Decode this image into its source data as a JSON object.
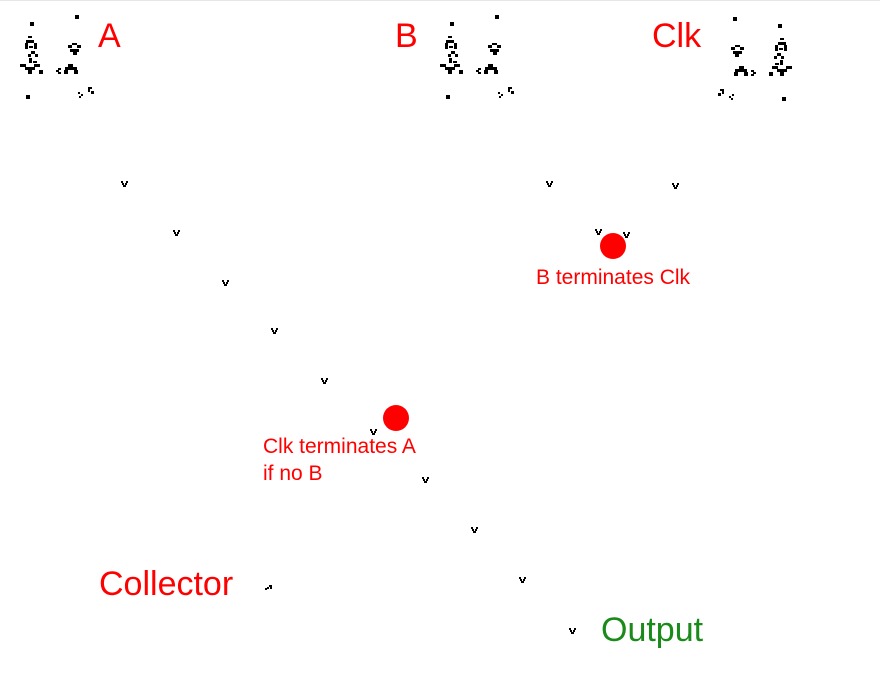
{
  "labels": {
    "a": "A",
    "b": "B",
    "clk": "Clk",
    "collector": "Collector",
    "output": "Output",
    "b_terminates": "B terminates Clk",
    "clk_terminates_line1": "Clk terminates A",
    "clk_terminates_line2": "if no B"
  },
  "colors": {
    "annotation": "#ff0000",
    "output": "#1a8a1a",
    "cells": "#000000"
  },
  "icons": {
    "glider_gun": "glider-gun-icon",
    "glider": "glider-icon",
    "eater": "eater-icon",
    "collision_marker": "collision-marker"
  }
}
